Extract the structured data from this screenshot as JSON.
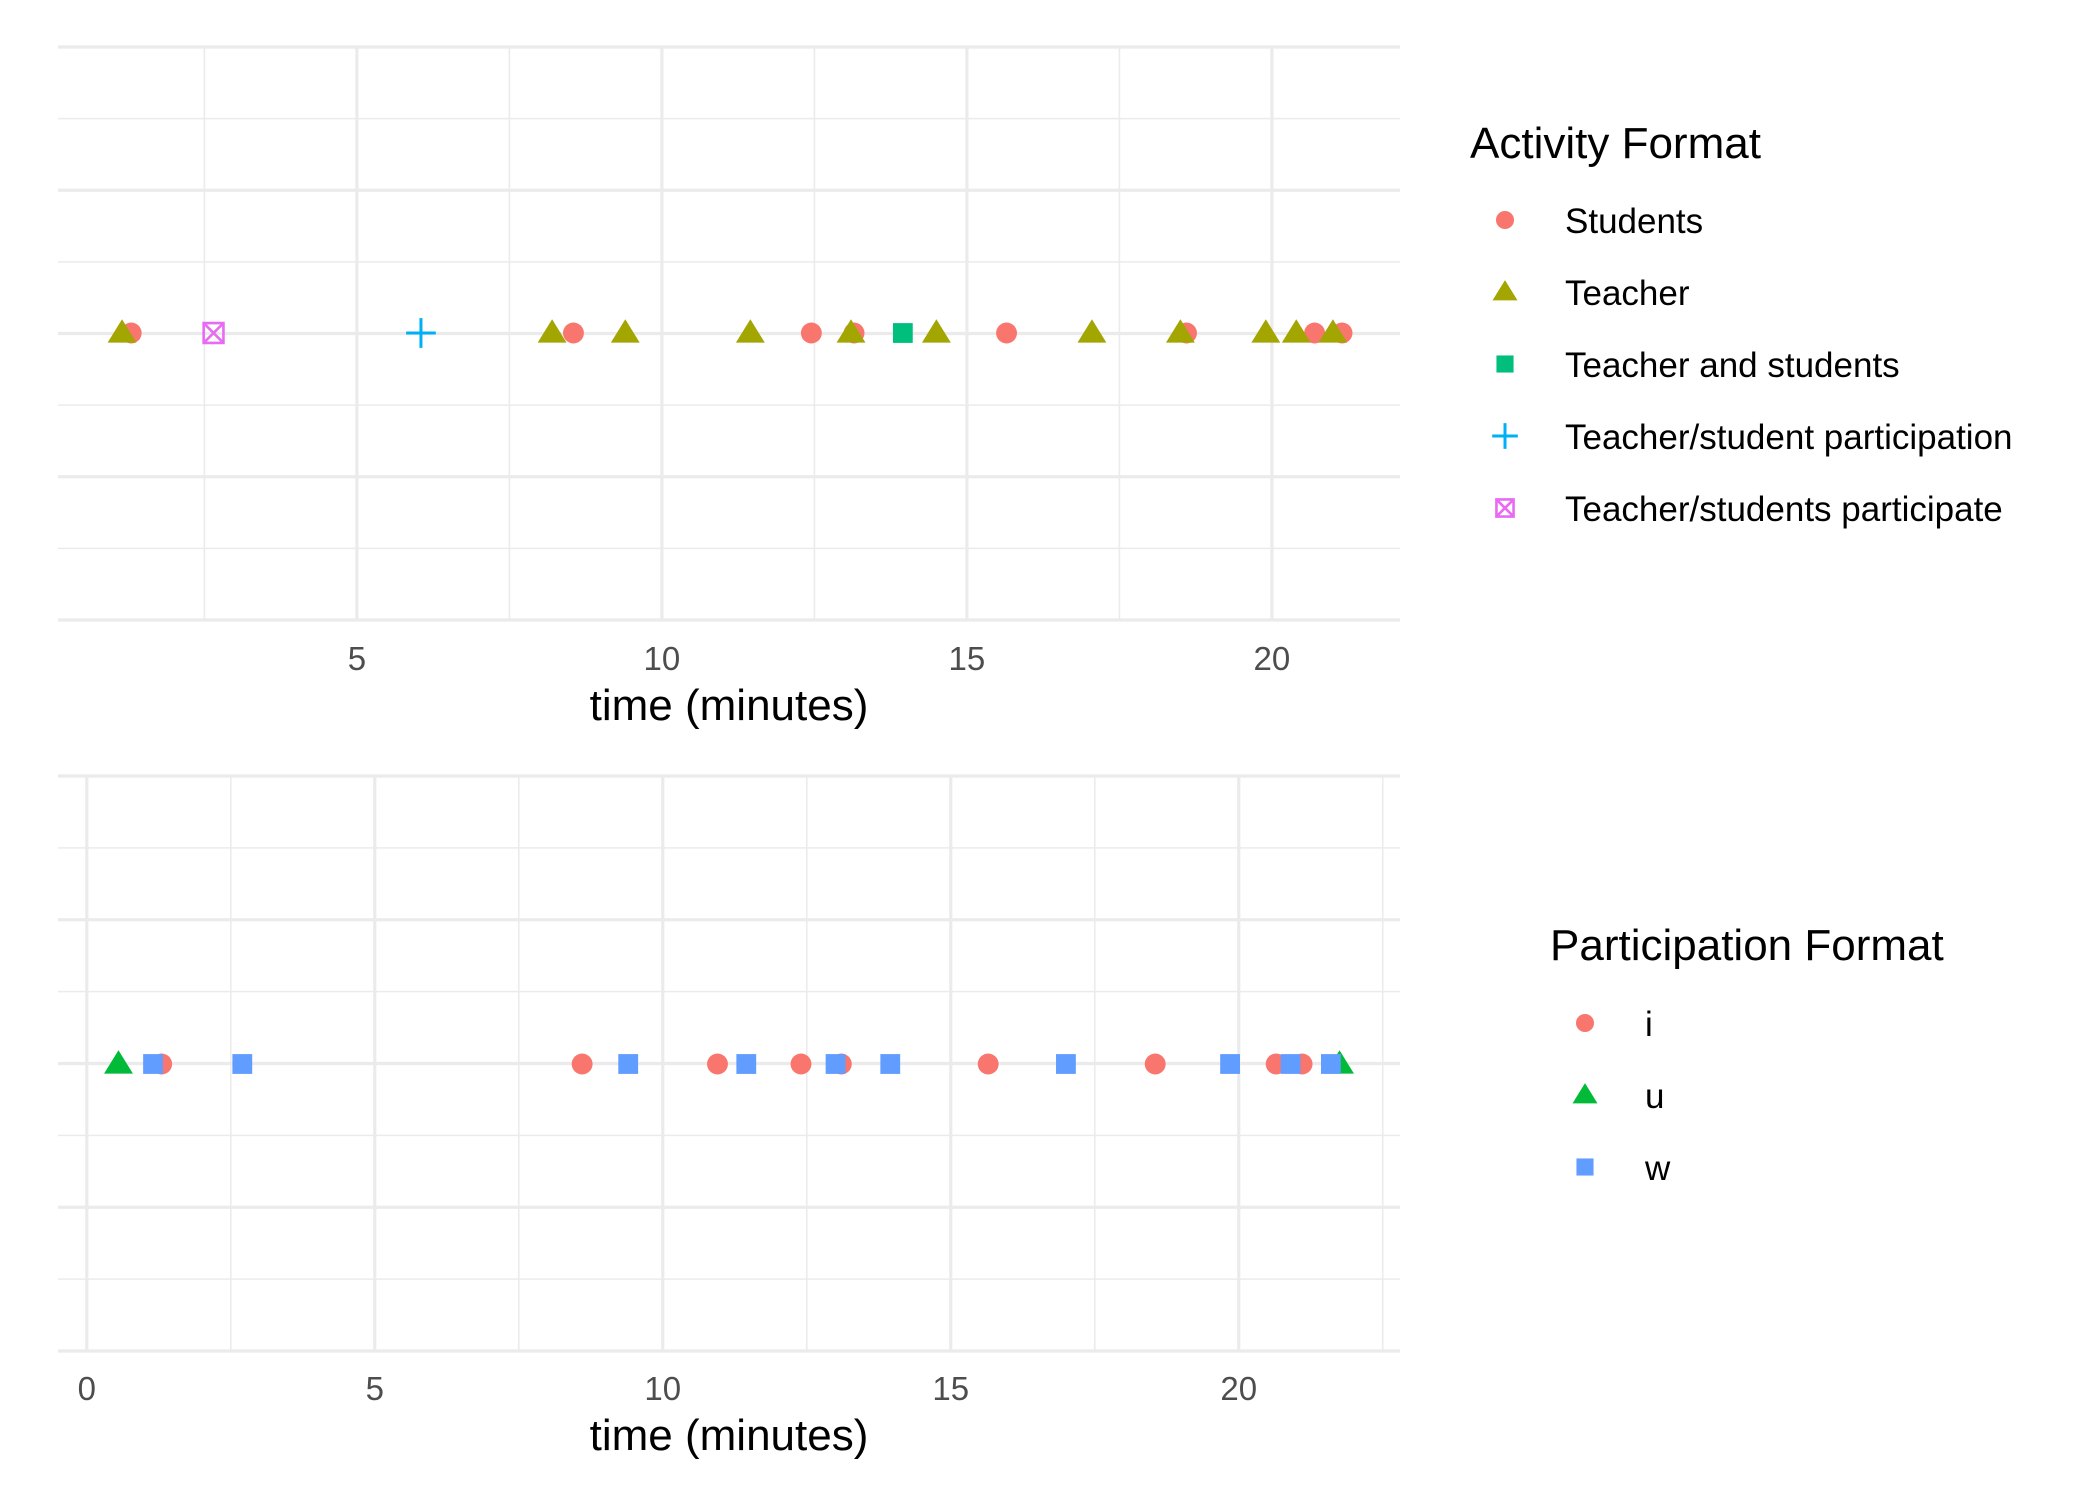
{
  "chart_data": [
    {
      "type": "scatter",
      "xlabel": "time (minutes)",
      "ylabel": "",
      "xlim": [
        0.1,
        22.1
      ],
      "ticks": [
        5,
        10,
        15,
        20
      ],
      "grid": true,
      "legend_title": "Activity Format",
      "legend_position": "right",
      "series": [
        {
          "name": "Students",
          "color": "#F8766D",
          "shape": "circle",
          "x": [
            1.3,
            8.55,
            12.45,
            13.15,
            15.65,
            18.6,
            20.7,
            21.15
          ]
        },
        {
          "name": "Teacher",
          "color": "#A3A500",
          "shape": "triangle",
          "x": [
            1.15,
            8.2,
            9.4,
            11.45,
            13.1,
            14.5,
            17.05,
            18.5,
            19.9,
            20.4,
            21.0
          ]
        },
        {
          "name": "Teacher and students",
          "color": "#00BF7D",
          "shape": "square",
          "x": [
            13.95
          ]
        },
        {
          "name": "Teacher/student participation",
          "color": "#00B0F6",
          "shape": "plus",
          "x": [
            6.05
          ]
        },
        {
          "name": "Teacher/students participate",
          "color": "#E76BF3",
          "shape": "boxcross",
          "x": [
            2.65
          ]
        }
      ]
    },
    {
      "type": "scatter",
      "xlabel": "time (minutes)",
      "ylabel": "",
      "xlim": [
        -0.5,
        22.8
      ],
      "ticks": [
        0,
        5,
        10,
        15,
        20
      ],
      "grid": true,
      "legend_title": "Participation Format",
      "legend_position": "right",
      "series": [
        {
          "name": "i",
          "color": "#F8766D",
          "shape": "circle",
          "x": [
            1.3,
            8.6,
            10.95,
            12.4,
            13.1,
            15.65,
            18.55,
            20.65,
            21.1
          ]
        },
        {
          "name": "u",
          "color": "#00BA38",
          "shape": "triangle",
          "x": [
            0.55,
            21.75
          ]
        },
        {
          "name": "w",
          "color": "#619CFF",
          "shape": "square",
          "x": [
            1.15,
            2.7,
            9.4,
            11.45,
            13.0,
            13.95,
            17.0,
            19.85,
            20.9,
            21.6
          ]
        }
      ]
    }
  ]
}
